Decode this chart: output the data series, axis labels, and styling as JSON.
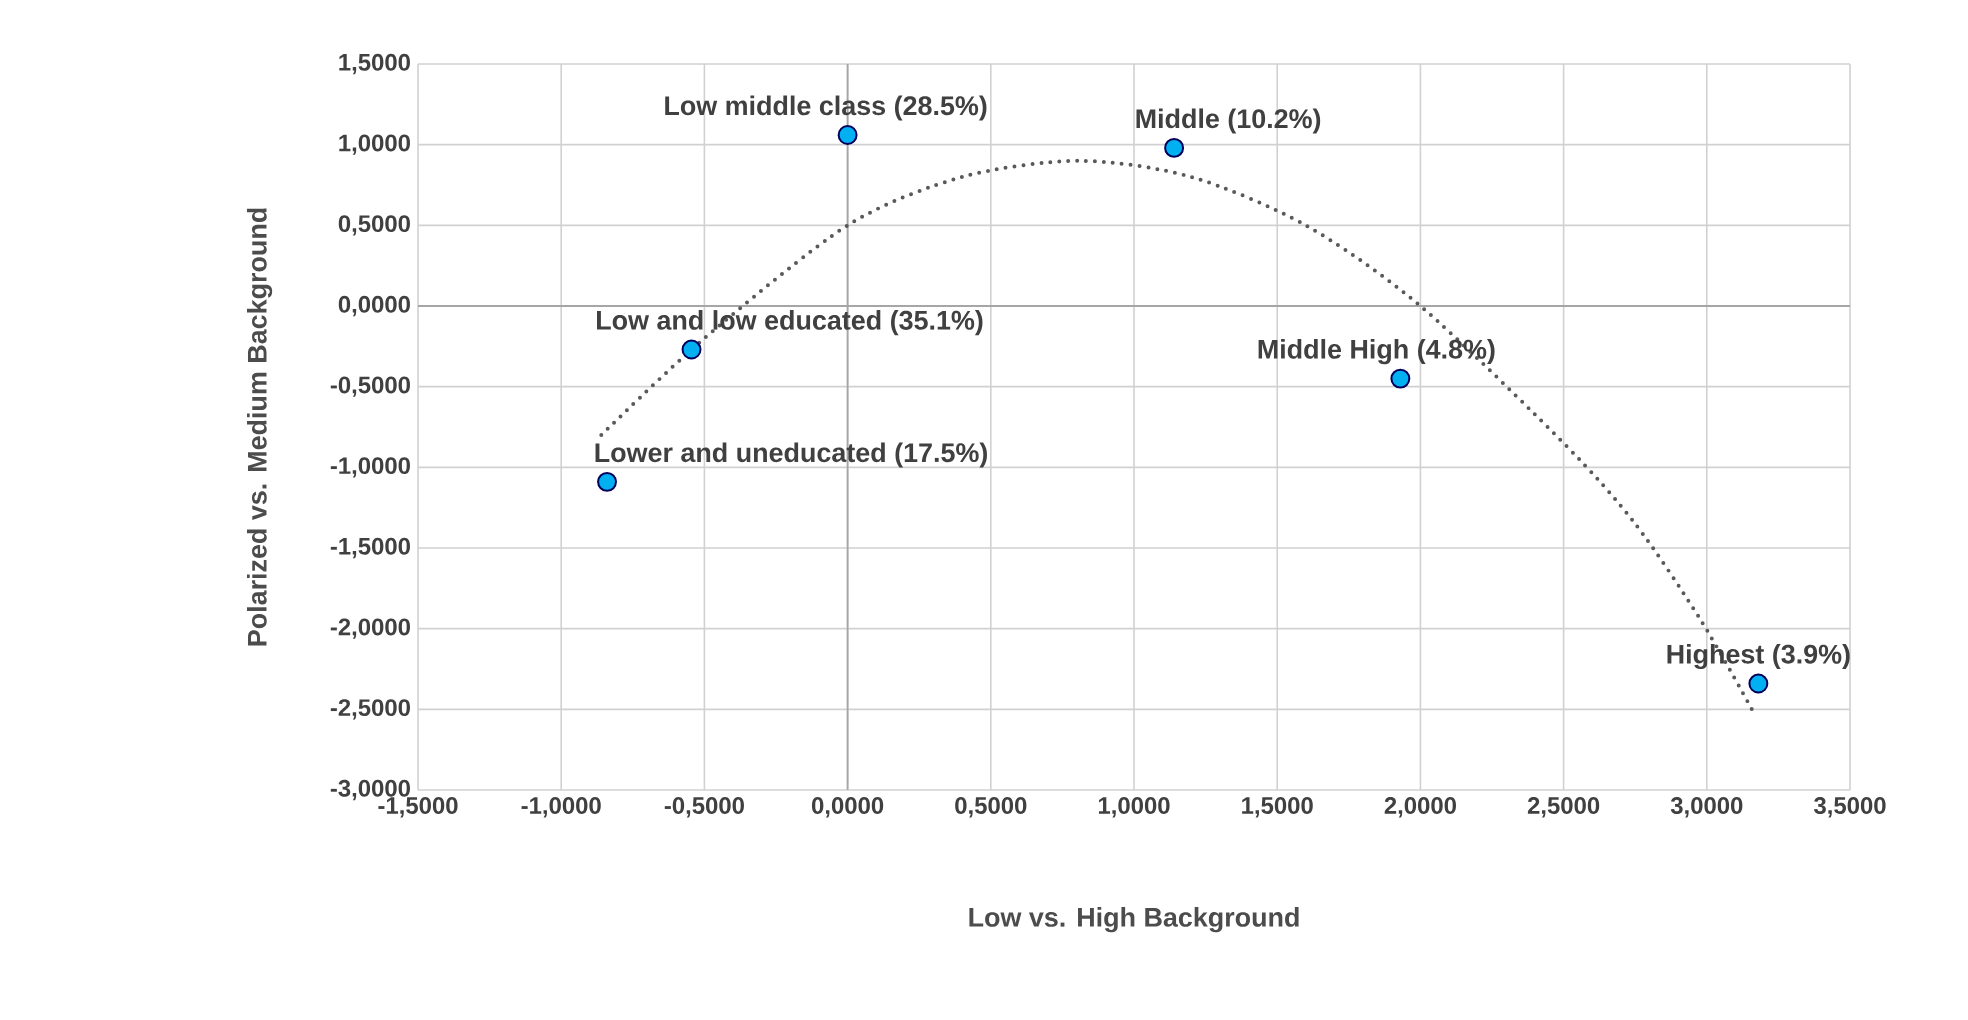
{
  "chart_data": {
    "type": "scatter",
    "xlabel": "Low vs. High Background",
    "ylabel": "Polarized vs. Medium Background",
    "xlim": [
      -1.5,
      3.5
    ],
    "ylim": [
      -3,
      1.5
    ],
    "xticks": [
      {
        "value": -1.5,
        "label": "-1,5000"
      },
      {
        "value": -1.0,
        "label": "-1,0000"
      },
      {
        "value": -0.5,
        "label": "-0,5000"
      },
      {
        "value": 0,
        "label": "0,0000"
      },
      {
        "value": 0.5,
        "label": "0,5000"
      },
      {
        "value": 1.0,
        "label": "1,0000"
      },
      {
        "value": 1.5,
        "label": "1,5000"
      },
      {
        "value": 2.0,
        "label": "2,0000"
      },
      {
        "value": 2.5,
        "label": "2,5000"
      },
      {
        "value": 3.0,
        "label": "3,0000"
      },
      {
        "value": 3.5,
        "label": "3,5000"
      }
    ],
    "yticks": [
      {
        "value": -3.0,
        "label": "-3,0000"
      },
      {
        "value": -2.5,
        "label": "-2,5000"
      },
      {
        "value": -2.0,
        "label": "-2,0000"
      },
      {
        "value": -1.5,
        "label": "-1,5000"
      },
      {
        "value": -1.0,
        "label": "-1,0000"
      },
      {
        "value": -0.5,
        "label": "-0,5000"
      },
      {
        "value": 0,
        "label": "0,0000"
      },
      {
        "value": 0.5,
        "label": "0,5000"
      },
      {
        "value": 1.0,
        "label": "1,0000"
      },
      {
        "value": 1.5,
        "label": "1,5000"
      }
    ],
    "grid": true,
    "series": [
      {
        "color": "#00b0f0",
        "marker": "circle",
        "x": [
          -0.84,
          -0.545,
          0.0,
          1.14,
          1.93,
          3.18
        ],
        "values": [
          -1.09,
          -0.27,
          1.06,
          0.98,
          -0.45,
          -2.34
        ]
      },
      {
        "type": "line",
        "color": "#595959",
        "marker": "none",
        "line_style": "dotted",
        "x": [
          -0.86,
          -0.5,
          0,
          0.4,
          0.81,
          1.2,
          1.6,
          2.0,
          2.5,
          2.75,
          2.98,
          3.17
        ],
        "values": [
          -0.8,
          -0.2,
          0.5,
          0.8,
          0.9,
          0.8,
          0.5,
          0.0,
          -0.85,
          -1.35,
          -1.95,
          -2.54
        ]
      }
    ],
    "annotations": [
      {
        "text": "Lower and uneducated (17.5%)",
        "x": -0.84,
        "y": -1.09
      },
      {
        "text": "Low and low educated (35.1%)",
        "x": -0.545,
        "y": -0.27
      },
      {
        "text": "Low middle class (28.5%)",
        "x": 0.0,
        "y": 1.06
      },
      {
        "text": "Middle (10.2%)",
        "x": 1.14,
        "y": 0.98
      },
      {
        "text": "Middle High (4.8%)",
        "x": 1.93,
        "y": -0.45
      },
      {
        "text": "Highest (3.9%)",
        "x": 3.18,
        "y": -2.34
      }
    ]
  }
}
